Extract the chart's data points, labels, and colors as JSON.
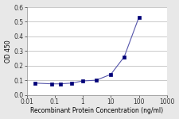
{
  "x": [
    0.02,
    0.08,
    0.16,
    0.4,
    1,
    3,
    10,
    30,
    100
  ],
  "y": [
    0.08,
    0.075,
    0.075,
    0.08,
    0.095,
    0.1,
    0.14,
    0.26,
    0.53
  ],
  "line_color": "#5555AA",
  "marker": "s",
  "marker_size": 2.8,
  "marker_color": "#000077",
  "xlim_log": [
    0.01,
    1000
  ],
  "ylim": [
    0.0,
    0.6
  ],
  "yticks": [
    0.0,
    0.1,
    0.2,
    0.3,
    0.4,
    0.5,
    0.6
  ],
  "xtick_vals": [
    0.01,
    0.1,
    1,
    10,
    100,
    1000
  ],
  "ylabel": "OD 450",
  "xlabel": "Recombinant Protein Concentration (ng/ml)",
  "xlabel_fontsize": 5.5,
  "ylabel_fontsize": 5.5,
  "tick_fontsize": 5.5,
  "fig_bg_color": "#e8e8e8",
  "plot_bg": "#ffffff",
  "grid_color": "#c0c0c0"
}
